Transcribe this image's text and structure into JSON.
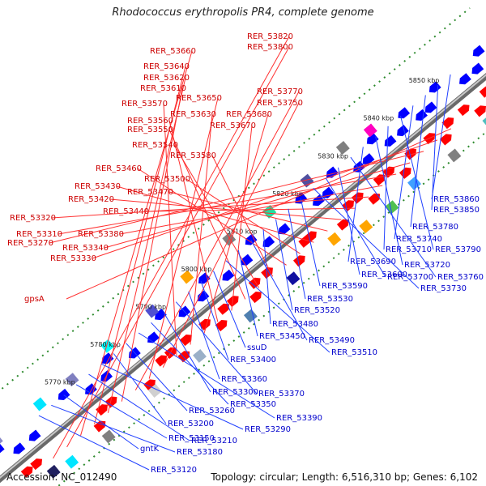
{
  "title": "Rhodococcus erythropolis PR4, complete genome",
  "footer": {
    "accession": "Accession: NC_012490",
    "summary": "Topology: circular; Length: 6,516,310 bp; Genes: 6,102"
  },
  "colors": {
    "backbone": "#808080",
    "forward_gene": "#ff0000",
    "reverse_gene": "#0000ff",
    "forward_label": "#cc0000",
    "reverse_label": "#0000cc",
    "dotted_track": "#2e8b2e"
  },
  "ticks": [
    {
      "label": "5770 kbp",
      "pos": 5770
    },
    {
      "label": "5780 kbp",
      "pos": 5780
    },
    {
      "label": "5790 kbp",
      "pos": 5790
    },
    {
      "label": "5800 kbp",
      "pos": 5800
    },
    {
      "label": "5810 kbp",
      "pos": 5810
    },
    {
      "label": "5820 kbp",
      "pos": 5820
    },
    {
      "label": "5830 kbp",
      "pos": 5830
    },
    {
      "label": "5840 kbp",
      "pos": 5840
    },
    {
      "label": "5850 kbp",
      "pos": 5850
    }
  ],
  "forward_labels": [
    "RER_53820",
    "RER_53800",
    "RER_53660",
    "RER_53640",
    "RER_53620",
    "RER_53610",
    "RER_53770",
    "RER_53650",
    "RER_53750",
    "RER_53570",
    "RER_53630",
    "RER_53680",
    "RER_53560",
    "RER_53670",
    "RER_53550",
    "RER_53540",
    "RER_53580",
    "RER_53460",
    "RER_53500",
    "RER_53430",
    "RER_53470",
    "RER_53420",
    "RER_53440",
    "RER_53320",
    "RER_53380",
    "RER_53310",
    "RER_53340",
    "RER_53270",
    "RER_53330",
    "gpsA"
  ],
  "reverse_labels": [
    "RER_53860",
    "RER_53850",
    "RER_53780",
    "RER_53740",
    "RER_53790",
    "RER_53710",
    "RER_53720",
    "RER_53690",
    "RER_53760",
    "RER_53600",
    "RER_53700",
    "RER_53730",
    "RER_53590",
    "RER_53530",
    "RER_53520",
    "RER_53480",
    "RER_53490",
    "RER_53450",
    "RER_53510",
    "ssuD",
    "RER_53400",
    "RER_53360",
    "RER_53370",
    "RER_53300",
    "RER_53350",
    "RER_53390",
    "RER_53260",
    "RER_53200",
    "RER_53290",
    "RER_53210",
    "RER_53150",
    "gntK",
    "RER_53180",
    "RER_53120"
  ]
}
